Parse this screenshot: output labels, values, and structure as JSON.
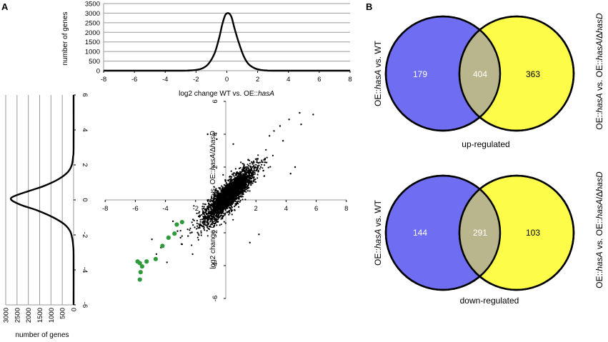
{
  "panels": {
    "a": "A",
    "b": "B"
  },
  "chart_data": [
    {
      "id": "top-histogram",
      "type": "line",
      "title": "",
      "xlabel_pre": "log2 change WT vs. OE::",
      "xlabel_it": "hasA",
      "ylabel": "number of genes",
      "xlim": [
        -8,
        8
      ],
      "ylim": [
        0,
        3500
      ],
      "xticks": [
        "-8",
        "-6",
        "-4",
        "-2",
        "0",
        "2",
        "4",
        "6",
        "8"
      ],
      "yticks": [
        "0",
        "500",
        "1000",
        "1500",
        "2000",
        "2500",
        "3000",
        "3500"
      ],
      "grid": "horizontal",
      "x": [
        -8,
        -3.0,
        -2.5,
        -2.0,
        -1.6,
        -1.2,
        -0.8,
        -0.5,
        -0.3,
        -0.1,
        0.1,
        0.3,
        0.5,
        0.8,
        1.1,
        1.4,
        1.8,
        2.2,
        2.6,
        3.2,
        8
      ],
      "y": [
        0,
        0,
        10,
        40,
        120,
        350,
        900,
        1700,
        2400,
        2900,
        3000,
        2800,
        2200,
        1400,
        750,
        350,
        130,
        40,
        10,
        0,
        0
      ]
    },
    {
      "id": "left-histogram",
      "type": "line",
      "orientation": "horizontal",
      "xlabel": "number of genes",
      "xlim": [
        3000,
        0
      ],
      "ylim": [
        -6,
        6
      ],
      "xticks": [
        "3000",
        "2500",
        "2000",
        "1500",
        "1000",
        "500",
        "0"
      ],
      "yticks": [
        "6",
        "4",
        "2",
        "0",
        "-2",
        "-4",
        "-6"
      ],
      "grid": "vertical",
      "value": [
        -6,
        -3.2,
        -2.6,
        -2.2,
        -1.8,
        -1.4,
        -1.0,
        -0.6,
        -0.3,
        0.0,
        0.2,
        0.5,
        0.8,
        1.2,
        1.6,
        2.0,
        2.5,
        3.0,
        6
      ],
      "count": [
        0,
        0,
        20,
        60,
        150,
        400,
        900,
        1600,
        2300,
        2750,
        2650,
        2000,
        1300,
        650,
        250,
        80,
        20,
        0,
        0
      ]
    },
    {
      "id": "scatter",
      "type": "scatter",
      "xlabel": "",
      "ylabel_pre": "log2 change OE::",
      "ylabel_it1": "hasA",
      "ylabel_mid": " vs. OE::",
      "ylabel_it2": "hasA",
      "ylabel_post": "/∆",
      "ylabel_it3": "hasD",
      "xlim": [
        -8,
        8
      ],
      "ylim": [
        -6,
        6
      ],
      "xticks": [
        "-8",
        "-6",
        "-4",
        "-2",
        "2",
        "4",
        "6",
        "8"
      ],
      "yticks": [
        "6",
        "4",
        "2",
        "-2",
        "-4",
        "-6"
      ],
      "cloud_center": [
        0.2,
        0.3
      ],
      "cloud_count": 2600,
      "outliers": [
        [
          4.9,
          5.3
        ],
        [
          5.8,
          5.2
        ],
        [
          5.0,
          4.6
        ],
        [
          4.2,
          4.9
        ],
        [
          3.8,
          3.6
        ],
        [
          3.6,
          4.5
        ],
        [
          4.6,
          2.0
        ],
        [
          4.3,
          1.6
        ],
        [
          3.2,
          4.2
        ],
        [
          2.9,
          3.9
        ],
        [
          -1.2,
          4.0
        ],
        [
          -0.6,
          3.7
        ],
        [
          0.5,
          3.4
        ],
        [
          -3.9,
          -3.8
        ],
        [
          -3.5,
          -1.3
        ],
        [
          -3.2,
          -1.9
        ],
        [
          -3.0,
          -2.3
        ],
        [
          -2.2,
          -3.3
        ],
        [
          -2.5,
          -2.2
        ],
        [
          -4.6,
          -3.3
        ],
        [
          1.6,
          -2.6
        ],
        [
          2.2,
          -2.1
        ],
        [
          -2.9,
          -2.7
        ],
        [
          -4.9,
          -2.4
        ],
        [
          -4.3,
          -2.9
        ]
      ],
      "highlight_color": "#2e9a3a",
      "highlight_points": [
        [
          -5.85,
          -3.75
        ],
        [
          -5.7,
          -3.85
        ],
        [
          -5.55,
          -4.05
        ],
        [
          -5.25,
          -3.75
        ],
        [
          -5.65,
          -4.4
        ],
        [
          -5.7,
          -4.85
        ],
        [
          -4.65,
          -3.6
        ],
        [
          -4.2,
          -2.8
        ],
        [
          -3.8,
          -2.3
        ],
        [
          -3.4,
          -2.05
        ],
        [
          -3.25,
          -1.5
        ],
        [
          -2.9,
          -1.35
        ]
      ]
    },
    {
      "id": "venn-up",
      "type": "venn",
      "left_count": "179",
      "overlap_count": "404",
      "right_count": "363",
      "caption": "up-regulated",
      "left_label_pre": "OE::",
      "left_label_it": "hasA",
      "left_label_post": " vs. WT",
      "right_label_pre": "OE::",
      "right_label_it1": "hasA",
      "right_label_mid": " vs. OE::",
      "right_label_it2": "hasA",
      "right_label_post": "/∆",
      "right_label_it3": "hasD",
      "colors": {
        "left": "#6f6ef2",
        "right": "#fcfc49",
        "overlap": "#b9b58c"
      }
    },
    {
      "id": "venn-down",
      "type": "venn",
      "left_count": "144",
      "overlap_count": "291",
      "right_count": "103",
      "caption": "down-regulated",
      "left_label_pre": "OE::",
      "left_label_it": "hasA",
      "left_label_post": " vs. WT",
      "right_label_pre": "OE::",
      "right_label_it1": "hasA",
      "right_label_mid": " vs. OE::",
      "right_label_it2": "hasA",
      "right_label_post": "/∆",
      "right_label_it3": "hasD",
      "colors": {
        "left": "#6f6ef2",
        "right": "#fcfc49",
        "overlap": "#b9b58c"
      }
    }
  ]
}
